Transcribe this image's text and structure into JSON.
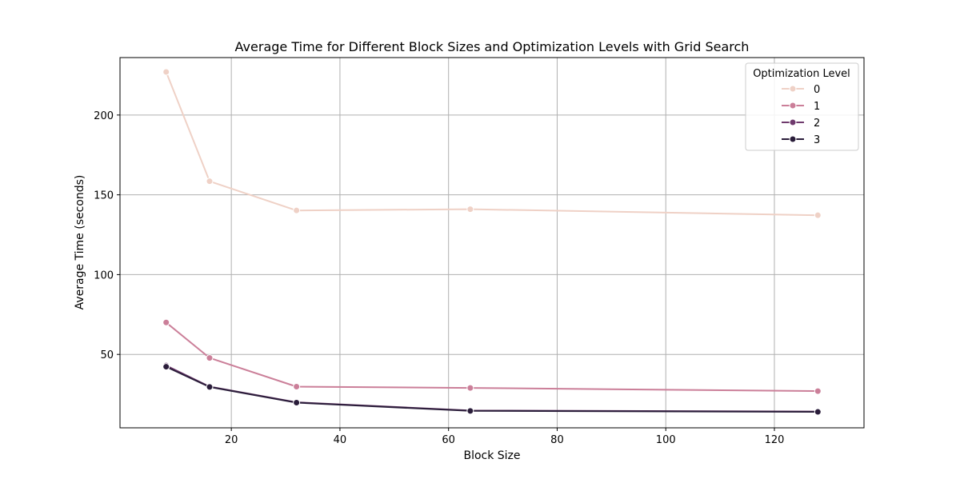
{
  "chart_data": {
    "type": "line",
    "title": "Average Time for Different Block Sizes and Optimization Levels with Grid Search",
    "xlabel": "Block Size",
    "ylabel": "Average Time (seconds)",
    "x": [
      8,
      16,
      32,
      64,
      128
    ],
    "xlim": [
      -0.5,
      136.5
    ],
    "ylim": [
      4,
      236
    ],
    "xticks": [
      20,
      40,
      60,
      80,
      100,
      120
    ],
    "yticks": [
      50,
      100,
      150,
      200
    ],
    "grid": true,
    "legend": {
      "title": "Optimization Level",
      "placement": "top-right"
    },
    "series": [
      {
        "name": "0",
        "color": "#efd1c6",
        "values": [
          227.0,
          158.5,
          140.2,
          141.0,
          137.2
        ]
      },
      {
        "name": "1",
        "color": "#cb7f99",
        "values": [
          70.0,
          47.8,
          29.8,
          29.0,
          27.0
        ]
      },
      {
        "name": "2",
        "color": "#6f3a6d",
        "values": [
          43.0,
          29.8,
          20.0,
          14.8,
          14.2
        ]
      },
      {
        "name": "3",
        "color": "#2a1d3a",
        "values": [
          42.3,
          29.6,
          19.8,
          14.6,
          14.0
        ]
      }
    ]
  }
}
